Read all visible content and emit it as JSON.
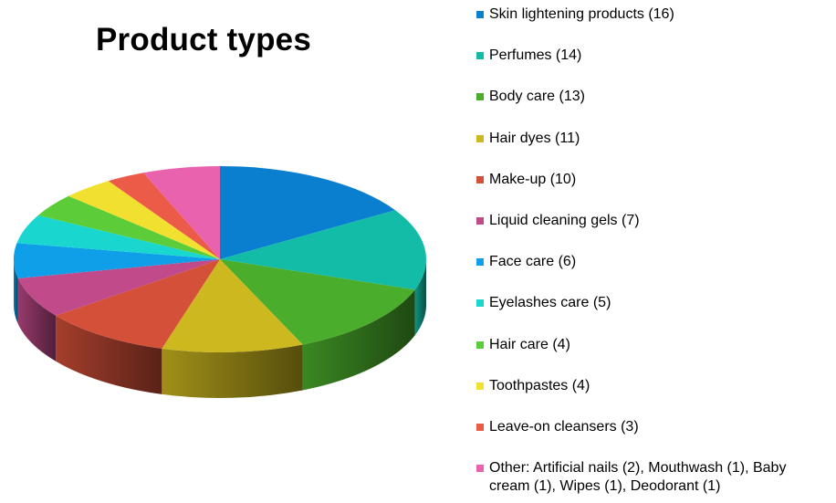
{
  "chart_data": {
    "type": "pie",
    "title": "Product types",
    "series": [
      {
        "label": "Skin lightening products (16)",
        "value": 16,
        "color": "#0a7fcf"
      },
      {
        "label": "Perfumes (14)",
        "value": 14,
        "color": "#13bca6"
      },
      {
        "label": "Body care (13)",
        "value": 13,
        "color": "#4aae2c"
      },
      {
        "label": "Hair dyes (11)",
        "value": 11,
        "color": "#cdb820"
      },
      {
        "label": "Make-up (10)",
        "value": 10,
        "color": "#d45038"
      },
      {
        "label": "Liquid cleaning gels (7)",
        "value": 7,
        "color": "#c04a8a"
      },
      {
        "label": "Face care (6)",
        "value": 6,
        "color": "#0f9ee8"
      },
      {
        "label": "Eyelashes care (5)",
        "value": 5,
        "color": "#19d7cf"
      },
      {
        "label": "Hair care (4)",
        "value": 4,
        "color": "#5ccc38"
      },
      {
        "label": "Toothpastes (4)",
        "value": 4,
        "color": "#f2e030"
      },
      {
        "label": "Leave-on cleansers (3)",
        "value": 3,
        "color": "#ec5a48"
      },
      {
        "label": "Other: Artificial nails (2), Mouthwash (1), Baby cream (1), Wipes (1), Deodorant (1)",
        "value": 6,
        "color": "#e962ad"
      }
    ],
    "legend_position": "right",
    "style": "3d"
  }
}
